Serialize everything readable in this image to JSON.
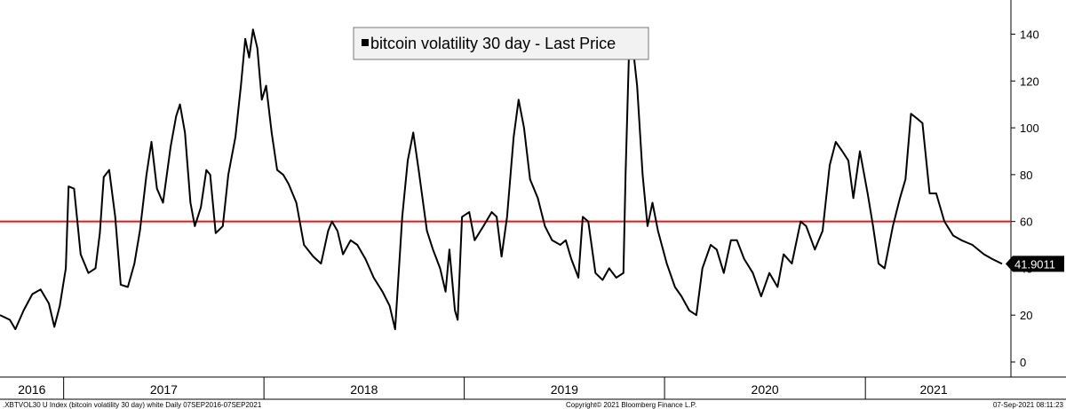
{
  "chart_data": {
    "type": "line",
    "legend": "bitcoin volatility 30 day - Last Price",
    "legend_position": "top-center",
    "series": [
      {
        "name": "bitcoin volatility 30 day - Last Price",
        "color": "#000000",
        "points": [
          [
            "2016-09-07",
            20
          ],
          [
            "2016-09-25",
            18
          ],
          [
            "2016-10-05",
            14
          ],
          [
            "2016-10-20",
            22
          ],
          [
            "2016-11-05",
            29
          ],
          [
            "2016-11-20",
            31
          ],
          [
            "2016-12-05",
            25
          ],
          [
            "2016-12-15",
            15
          ],
          [
            "2016-12-25",
            24
          ],
          [
            "2017-01-05",
            40
          ],
          [
            "2017-01-10",
            75
          ],
          [
            "2017-01-20",
            74
          ],
          [
            "2017-02-01",
            46
          ],
          [
            "2017-02-15",
            38
          ],
          [
            "2017-02-28",
            40
          ],
          [
            "2017-03-08",
            55
          ],
          [
            "2017-03-15",
            79
          ],
          [
            "2017-03-25",
            82
          ],
          [
            "2017-04-05",
            62
          ],
          [
            "2017-04-15",
            33
          ],
          [
            "2017-04-28",
            32
          ],
          [
            "2017-05-10",
            42
          ],
          [
            "2017-05-20",
            56
          ],
          [
            "2017-06-01",
            80
          ],
          [
            "2017-06-10",
            94
          ],
          [
            "2017-06-20",
            74
          ],
          [
            "2017-07-01",
            68
          ],
          [
            "2017-07-15",
            92
          ],
          [
            "2017-07-25",
            105
          ],
          [
            "2017-08-01",
            110
          ],
          [
            "2017-08-10",
            98
          ],
          [
            "2017-08-20",
            68
          ],
          [
            "2017-08-28",
            58
          ],
          [
            "2017-09-08",
            66
          ],
          [
            "2017-09-18",
            82
          ],
          [
            "2017-09-25",
            80
          ],
          [
            "2017-10-05",
            55
          ],
          [
            "2017-10-18",
            58
          ],
          [
            "2017-10-28",
            80
          ],
          [
            "2017-11-10",
            96
          ],
          [
            "2017-11-20",
            118
          ],
          [
            "2017-11-28",
            138
          ],
          [
            "2017-12-05",
            130
          ],
          [
            "2017-12-12",
            142
          ],
          [
            "2017-12-20",
            134
          ],
          [
            "2017-12-28",
            112
          ],
          [
            "2018-01-05",
            118
          ],
          [
            "2018-01-15",
            98
          ],
          [
            "2018-01-25",
            82
          ],
          [
            "2018-02-05",
            80
          ],
          [
            "2018-02-15",
            76
          ],
          [
            "2018-03-01",
            68
          ],
          [
            "2018-03-15",
            50
          ],
          [
            "2018-04-01",
            45
          ],
          [
            "2018-04-15",
            42
          ],
          [
            "2018-04-28",
            56
          ],
          [
            "2018-05-05",
            60
          ],
          [
            "2018-05-15",
            56
          ],
          [
            "2018-05-25",
            46
          ],
          [
            "2018-06-08",
            52
          ],
          [
            "2018-06-20",
            50
          ],
          [
            "2018-07-05",
            44
          ],
          [
            "2018-07-20",
            36
          ],
          [
            "2018-08-05",
            30
          ],
          [
            "2018-08-18",
            24
          ],
          [
            "2018-08-28",
            14
          ],
          [
            "2018-09-10",
            62
          ],
          [
            "2018-09-20",
            86
          ],
          [
            "2018-09-30",
            98
          ],
          [
            "2018-10-10",
            82
          ],
          [
            "2018-10-25",
            56
          ],
          [
            "2018-11-05",
            48
          ],
          [
            "2018-11-18",
            40
          ],
          [
            "2018-11-28",
            30
          ],
          [
            "2018-12-05",
            48
          ],
          [
            "2018-12-15",
            22
          ],
          [
            "2018-12-20",
            18
          ],
          [
            "2018-12-28",
            62
          ],
          [
            "2019-01-10",
            64
          ],
          [
            "2019-01-20",
            52
          ],
          [
            "2019-02-05",
            58
          ],
          [
            "2019-02-20",
            64
          ],
          [
            "2019-03-01",
            62
          ],
          [
            "2019-03-10",
            45
          ],
          [
            "2019-03-20",
            62
          ],
          [
            "2019-04-01",
            96
          ],
          [
            "2019-04-10",
            112
          ],
          [
            "2019-04-20",
            100
          ],
          [
            "2019-05-01",
            78
          ],
          [
            "2019-05-15",
            70
          ],
          [
            "2019-05-28",
            58
          ],
          [
            "2019-06-10",
            52
          ],
          [
            "2019-06-25",
            50
          ],
          [
            "2019-07-05",
            52
          ],
          [
            "2019-07-15",
            44
          ],
          [
            "2019-07-28",
            36
          ],
          [
            "2019-08-05",
            62
          ],
          [
            "2019-08-15",
            60
          ],
          [
            "2019-08-28",
            38
          ],
          [
            "2019-09-10",
            35
          ],
          [
            "2019-09-22",
            40
          ],
          [
            "2019-10-05",
            36
          ],
          [
            "2019-10-18",
            38
          ],
          [
            "2019-10-22",
            80
          ],
          [
            "2019-10-28",
            130
          ],
          [
            "2019-11-05",
            133
          ],
          [
            "2019-11-12",
            118
          ],
          [
            "2019-11-22",
            80
          ],
          [
            "2019-12-01",
            58
          ],
          [
            "2019-12-10",
            68
          ],
          [
            "2019-12-20",
            56
          ],
          [
            "2020-01-05",
            42
          ],
          [
            "2020-01-20",
            32
          ],
          [
            "2020-02-01",
            28
          ],
          [
            "2020-02-15",
            22
          ],
          [
            "2020-02-28",
            20
          ],
          [
            "2020-03-10",
            40
          ],
          [
            "2020-03-25",
            50
          ],
          [
            "2020-04-05",
            48
          ],
          [
            "2020-04-18",
            38
          ],
          [
            "2020-05-01",
            52
          ],
          [
            "2020-05-12",
            52
          ],
          [
            "2020-05-25",
            44
          ],
          [
            "2020-06-10",
            38
          ],
          [
            "2020-06-25",
            28
          ],
          [
            "2020-07-10",
            38
          ],
          [
            "2020-07-25",
            32
          ],
          [
            "2020-08-05",
            46
          ],
          [
            "2020-08-20",
            42
          ],
          [
            "2020-09-05",
            60
          ],
          [
            "2020-09-15",
            58
          ],
          [
            "2020-10-01",
            48
          ],
          [
            "2020-10-15",
            56
          ],
          [
            "2020-10-28",
            84
          ],
          [
            "2020-11-08",
            94
          ],
          [
            "2020-11-20",
            90
          ],
          [
            "2020-12-01",
            86
          ],
          [
            "2020-12-10",
            70
          ],
          [
            "2020-12-22",
            90
          ],
          [
            "2021-01-05",
            72
          ],
          [
            "2021-01-15",
            58
          ],
          [
            "2021-01-25",
            42
          ],
          [
            "2021-02-05",
            40
          ],
          [
            "2021-02-20",
            58
          ],
          [
            "2021-03-05",
            70
          ],
          [
            "2021-03-15",
            78
          ],
          [
            "2021-03-25",
            106
          ],
          [
            "2021-04-05",
            104
          ],
          [
            "2021-04-15",
            102
          ],
          [
            "2021-04-28",
            72
          ],
          [
            "2021-05-10",
            72
          ],
          [
            "2021-05-25",
            60
          ],
          [
            "2021-06-10",
            54
          ],
          [
            "2021-06-25",
            52
          ],
          [
            "2021-07-15",
            50
          ],
          [
            "2021-08-05",
            46
          ],
          [
            "2021-08-20",
            44
          ],
          [
            "2021-09-07",
            41.9
          ]
        ]
      }
    ],
    "threshold": {
      "value": 60,
      "color": "#e31919"
    },
    "last_value": "41.9011",
    "x_range": [
      "2016-09-07",
      "2021-09-07"
    ],
    "ylim": [
      -5,
      150
    ],
    "y_ticks": [
      0,
      20,
      40,
      60,
      80,
      100,
      120,
      140
    ],
    "x_tick_labels": [
      "2016",
      "2017",
      "2018",
      "2019",
      "2020",
      "2021"
    ],
    "year_boundaries": [
      "2017-01-01",
      "2018-01-01",
      "2019-01-01",
      "2020-01-01",
      "2021-01-01"
    ],
    "grid": false,
    "axis_side": "right"
  },
  "footer": {
    "left": ".XBTVOL30 U Index (bitcoin volatility 30 day) white  Daily 07SEP2016-07SEP2021",
    "center": "Copyright© 2021 Bloomberg Finance L.P.",
    "right": "07-Sep-2021 08:11:23"
  }
}
